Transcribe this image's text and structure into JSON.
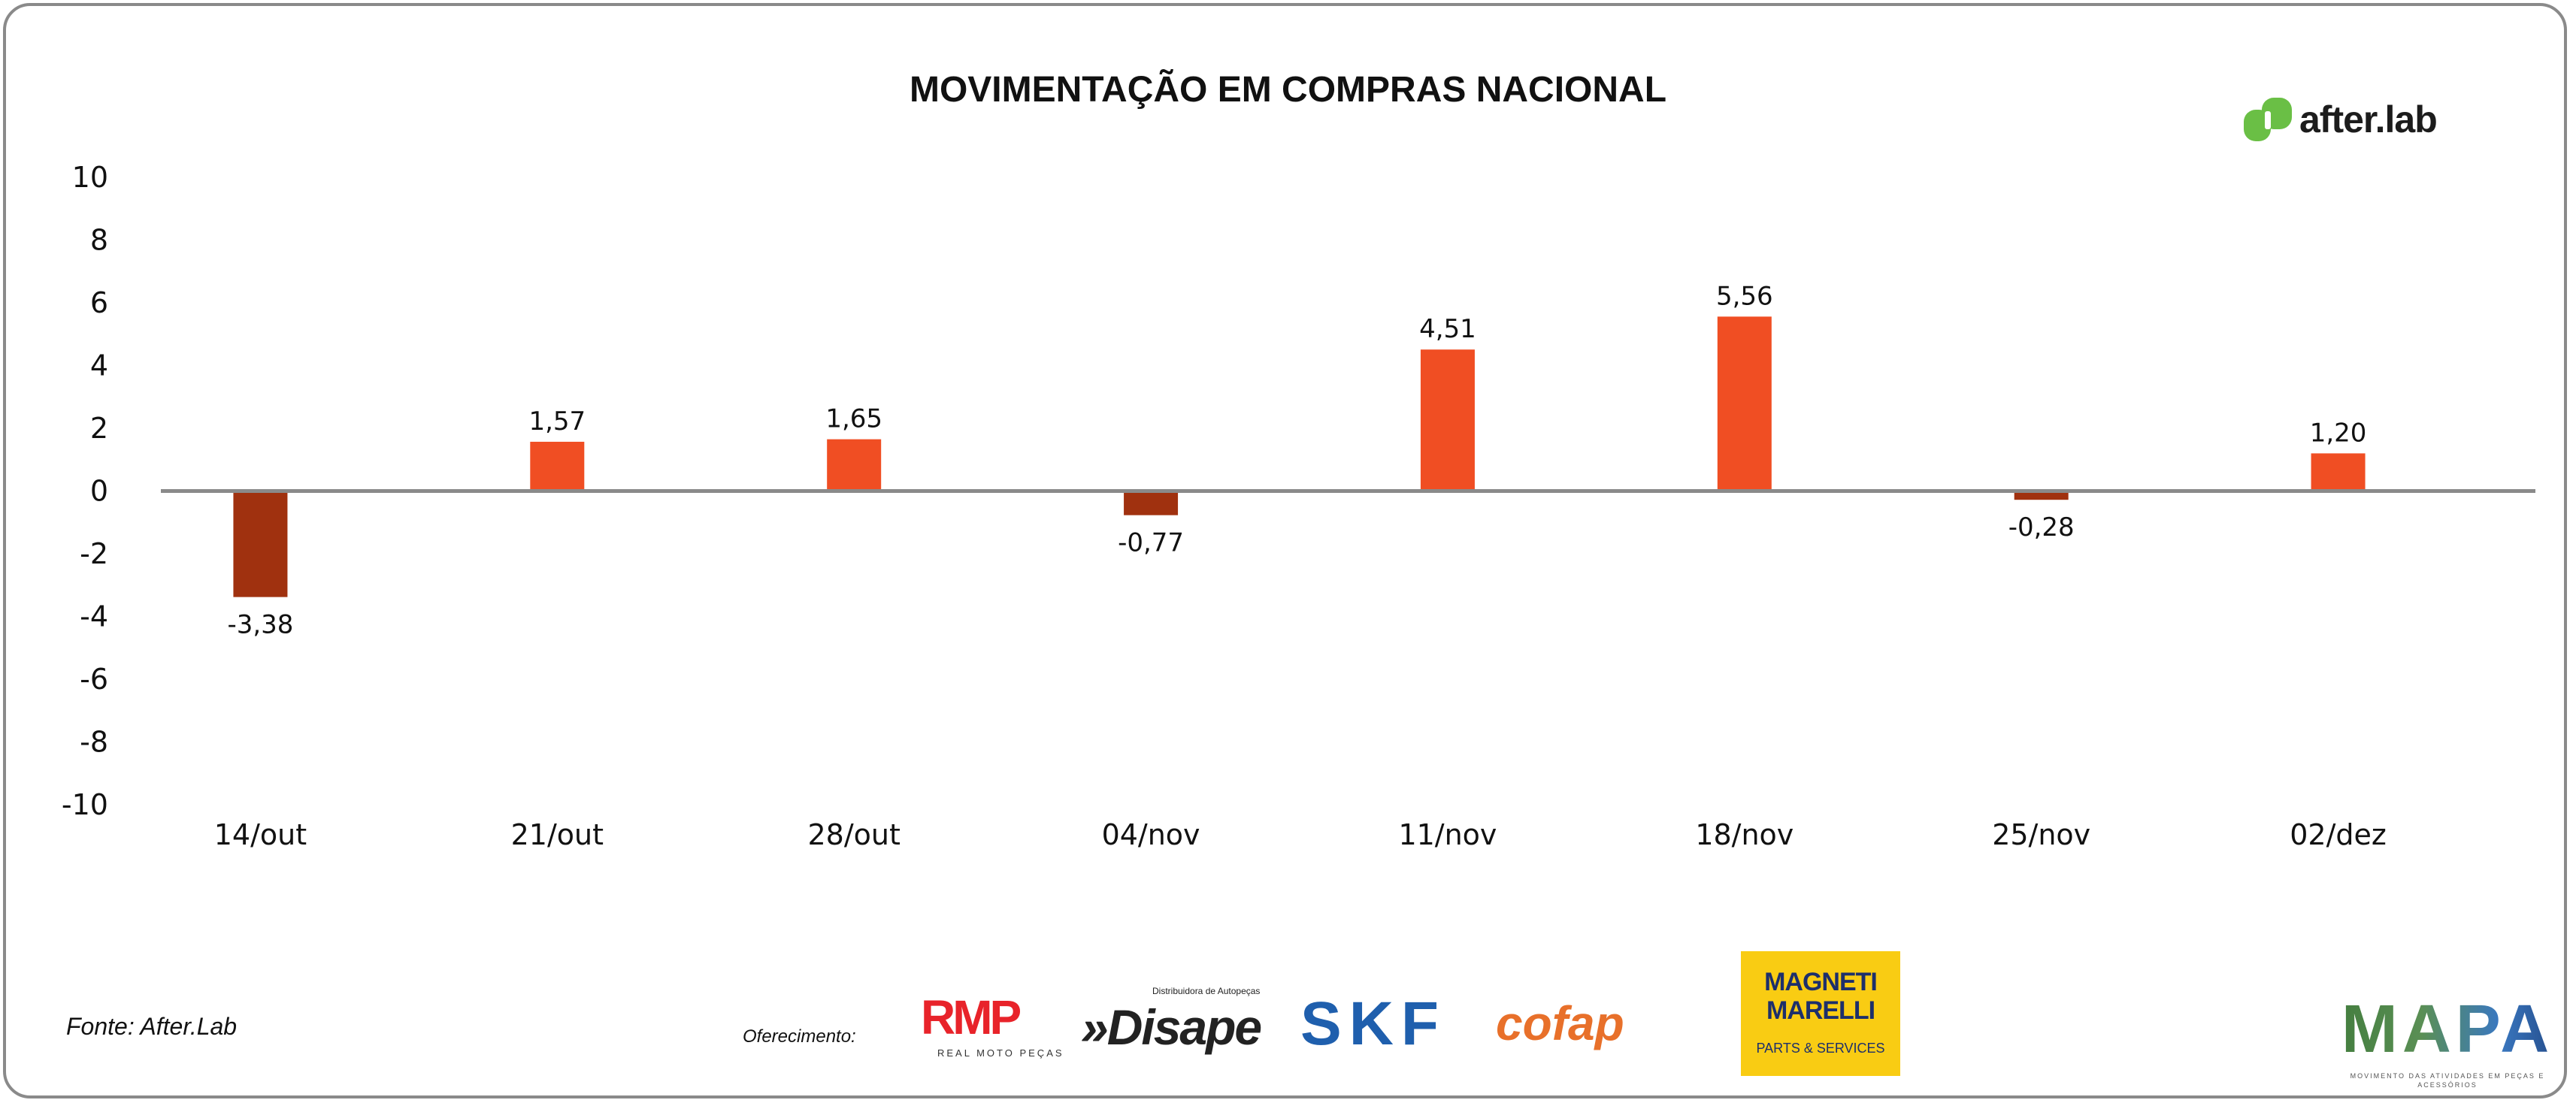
{
  "chart_data": {
    "type": "bar",
    "title": "MOVIMENTAÇÃO EM COMPRAS NACIONAL",
    "categories": [
      "14/out",
      "21/out",
      "28/out",
      "04/nov",
      "11/nov",
      "18/nov",
      "25/nov",
      "02/dez"
    ],
    "values": [
      -3.38,
      1.57,
      1.65,
      -0.77,
      4.51,
      5.56,
      -0.28,
      1.2
    ],
    "data_labels": [
      "-3,38",
      "1,57",
      "1,65",
      "-0,77",
      "4,51",
      "5,56",
      "-0,28",
      "1,20"
    ],
    "yticks": [
      "10",
      "8",
      "6",
      "4",
      "2",
      "0",
      "-2",
      "-4",
      "-6",
      "-8",
      "-10"
    ],
    "ylim": [
      -10,
      10
    ],
    "xlabel": "",
    "ylabel": "",
    "grid": false,
    "colors": {
      "positive": "#f04e23",
      "negative": "#a0310f",
      "axis": "#8a8a8a"
    }
  },
  "brand": {
    "name": "after.lab",
    "color": "#6abf45"
  },
  "footer": {
    "source": "Fonte: After.Lab",
    "offer_label": "Oferecimento:",
    "sponsors": {
      "rmp": "RMP",
      "rmp_sub": "REAL MOTO PEÇAS",
      "disape": "»Disape",
      "disape_sub": "Distribuidora de Autopeças",
      "skf": "SKF",
      "cofap": "cofap",
      "magneti": "MAGNETI MARELLI",
      "magneti_sub": "PARTS & SERVICES"
    },
    "mapa": "MAPA",
    "mapa_sub": "MOVIMENTO DAS ATIVIDADES EM PEÇAS E ACESSÓRIOS"
  }
}
